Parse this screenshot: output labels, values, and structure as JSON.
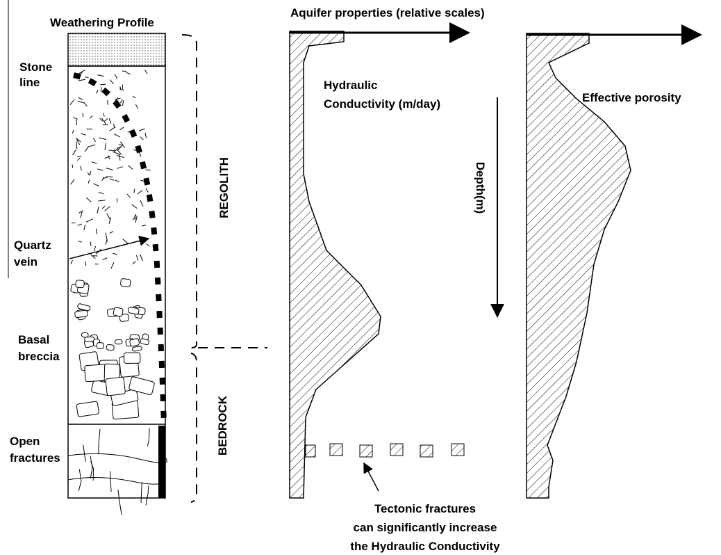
{
  "title": "Weathering Profile",
  "aquifer_title": "Aquifer properties (relative scales)",
  "profile_labels": [
    [
      "Stone",
      "line"
    ],
    [
      "Quartz",
      "vein"
    ],
    [
      "Basal",
      "breccia"
    ],
    [
      "Open",
      "fractures"
    ]
  ],
  "zones": [
    "REGOLITH",
    "BEDROCK"
  ],
  "curves": [
    [
      "Hydraulic",
      "Conductivity (m/day)"
    ],
    [
      "Effective porosity"
    ]
  ],
  "depth_label": "Depth(m)",
  "note": [
    "Tectonic fractures",
    "can significantly increase",
    "the Hydraulic Conductivity"
  ]
}
